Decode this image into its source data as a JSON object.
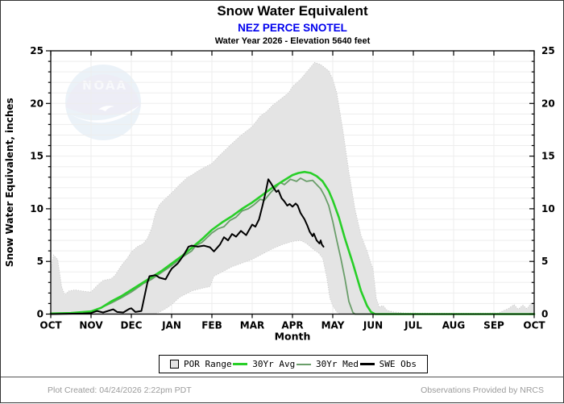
{
  "header": {
    "title": "Snow Water Equivalent",
    "station": "NEZ PERCE SNOTEL",
    "subtitle": "Water Year 2026 -  Elevation 5640 feet"
  },
  "watermark": {
    "text": "NOAA"
  },
  "legend": [
    {
      "label": "POR Range",
      "type": "box",
      "color": "#e4e4e4"
    },
    {
      "label": "30Yr Avg",
      "type": "line",
      "color": "#28cf28",
      "thickness": 3
    },
    {
      "label": "30Yr Med",
      "type": "line",
      "color": "#6a9e6a",
      "thickness": 2
    },
    {
      "label": "SWE Obs",
      "type": "line",
      "color": "#000000",
      "thickness": 3
    }
  ],
  "footer": {
    "left": "Plot Created: 04/24/2026 2:22pm PDT",
    "right": "Observations Provided by NRCS"
  },
  "chart_data": {
    "type": "line",
    "title": "Snow Water Equivalent - NEZ PERCE SNOTEL - Water Year 2026",
    "xlabel": "Month",
    "ylabel": "Snow Water Equivalent, inches",
    "x_unit": "months since Oct 1",
    "xlim": [
      0,
      12
    ],
    "ylim": [
      0,
      25
    ],
    "grid": true,
    "legend_position": "bottom",
    "x_tick_labels": [
      "OCT",
      "NOV",
      "DEC",
      "JAN",
      "FEB",
      "MAR",
      "APR",
      "MAY",
      "JUN",
      "JUL",
      "AUG",
      "SEP",
      "OCT"
    ],
    "y_ticks": [
      0,
      5,
      10,
      15,
      20,
      25
    ],
    "band": {
      "name": "POR Range",
      "fill": "#e4e4e4",
      "edge": "#c9c9c9",
      "upper": [
        [
          0,
          4.2
        ],
        [
          0.07,
          5.6
        ],
        [
          0.17,
          5.2
        ],
        [
          0.27,
          2.6
        ],
        [
          0.35,
          1.8
        ],
        [
          0.45,
          2.2
        ],
        [
          0.6,
          2.3
        ],
        [
          0.85,
          2.15
        ],
        [
          1.0,
          2.1
        ],
        [
          1.15,
          2.7
        ],
        [
          1.3,
          3.2
        ],
        [
          1.5,
          3.35
        ],
        [
          1.6,
          3.7
        ],
        [
          1.75,
          4.6
        ],
        [
          1.9,
          5.3
        ],
        [
          2.0,
          5.9
        ],
        [
          2.15,
          6.4
        ],
        [
          2.3,
          6.7
        ],
        [
          2.4,
          7.2
        ],
        [
          2.5,
          8.1
        ],
        [
          2.6,
          9.6
        ],
        [
          2.7,
          10.4
        ],
        [
          2.8,
          10.8
        ],
        [
          3.0,
          11.5
        ],
        [
          3.2,
          12.3
        ],
        [
          3.4,
          13.0
        ],
        [
          3.5,
          13.2
        ],
        [
          3.7,
          13.7
        ],
        [
          4.0,
          14.3
        ],
        [
          4.2,
          15.1
        ],
        [
          4.5,
          16.2
        ],
        [
          4.7,
          16.9
        ],
        [
          5.0,
          17.8
        ],
        [
          5.2,
          18.8
        ],
        [
          5.35,
          19.2
        ],
        [
          5.5,
          19.8
        ],
        [
          5.7,
          20.4
        ],
        [
          5.9,
          21.0
        ],
        [
          6.0,
          21.6
        ],
        [
          6.2,
          22.3
        ],
        [
          6.4,
          23.2
        ],
        [
          6.55,
          23.9
        ],
        [
          6.7,
          23.7
        ],
        [
          6.9,
          23.1
        ],
        [
          7.0,
          22.3
        ],
        [
          7.1,
          21.0
        ],
        [
          7.25,
          17.5
        ],
        [
          7.4,
          13.5
        ],
        [
          7.55,
          10.0
        ],
        [
          7.7,
          7.5
        ],
        [
          7.85,
          6.0
        ],
        [
          7.95,
          4.8
        ],
        [
          8.0,
          4.3
        ],
        [
          8.08,
          1.5
        ],
        [
          8.15,
          0.7
        ],
        [
          8.25,
          0.8
        ],
        [
          8.35,
          0.35
        ],
        [
          8.5,
          0.2
        ],
        [
          8.8,
          0.1
        ],
        [
          9.5,
          0.08
        ],
        [
          10.5,
          0.08
        ],
        [
          11.1,
          0.1
        ],
        [
          11.35,
          0.5
        ],
        [
          11.5,
          0.9
        ],
        [
          11.6,
          0.45
        ],
        [
          11.72,
          0.85
        ],
        [
          11.82,
          0.5
        ],
        [
          11.92,
          1.0
        ],
        [
          12,
          1.1
        ]
      ],
      "lower": [
        [
          0,
          0
        ],
        [
          2.55,
          0
        ],
        [
          2.7,
          0.2
        ],
        [
          2.85,
          0.5
        ],
        [
          3.0,
          0.9
        ],
        [
          3.2,
          1.6
        ],
        [
          3.5,
          2.2
        ],
        [
          3.75,
          2.45
        ],
        [
          3.95,
          2.6
        ],
        [
          4.05,
          3.6
        ],
        [
          4.3,
          4.1
        ],
        [
          4.5,
          4.5
        ],
        [
          4.75,
          4.85
        ],
        [
          5.0,
          5.2
        ],
        [
          5.25,
          5.7
        ],
        [
          5.5,
          6.2
        ],
        [
          5.75,
          6.6
        ],
        [
          6.0,
          6.9
        ],
        [
          6.2,
          7.0
        ],
        [
          6.35,
          6.7
        ],
        [
          6.5,
          6.2
        ],
        [
          6.65,
          5.8
        ],
        [
          6.75,
          5.3
        ],
        [
          6.85,
          3.5
        ],
        [
          6.93,
          1.5
        ],
        [
          7.0,
          0.8
        ],
        [
          7.1,
          0.2
        ],
        [
          7.2,
          0
        ],
        [
          12,
          0
        ]
      ]
    },
    "series": [
      {
        "name": "30Yr Avg",
        "color": "#28cf28",
        "width": 2.6,
        "points": [
          [
            0,
            0.05
          ],
          [
            0.5,
            0.1
          ],
          [
            1.0,
            0.25
          ],
          [
            1.25,
            0.6
          ],
          [
            1.5,
            1.2
          ],
          [
            1.75,
            1.7
          ],
          [
            2.0,
            2.3
          ],
          [
            2.25,
            2.9
          ],
          [
            2.5,
            3.5
          ],
          [
            2.75,
            4.1
          ],
          [
            3.0,
            4.8
          ],
          [
            3.25,
            5.5
          ],
          [
            3.5,
            6.3
          ],
          [
            3.75,
            7.1
          ],
          [
            4.0,
            8.0
          ],
          [
            4.25,
            8.7
          ],
          [
            4.5,
            9.3
          ],
          [
            4.75,
            10.0
          ],
          [
            5.0,
            10.6
          ],
          [
            5.25,
            11.3
          ],
          [
            5.5,
            12.0
          ],
          [
            5.75,
            12.6
          ],
          [
            6.0,
            13.2
          ],
          [
            6.15,
            13.4
          ],
          [
            6.3,
            13.5
          ],
          [
            6.45,
            13.4
          ],
          [
            6.6,
            13.1
          ],
          [
            6.75,
            12.6
          ],
          [
            6.9,
            11.7
          ],
          [
            7.0,
            10.8
          ],
          [
            7.15,
            9.2
          ],
          [
            7.3,
            7.2
          ],
          [
            7.5,
            4.8
          ],
          [
            7.7,
            2.2
          ],
          [
            7.85,
            0.8
          ],
          [
            7.95,
            0.2
          ],
          [
            8.05,
            0
          ],
          [
            12,
            0
          ]
        ]
      },
      {
        "name": "30Yr Med",
        "color": "#6a9e6a",
        "width": 1.8,
        "points": [
          [
            0,
            0
          ],
          [
            0.5,
            0.05
          ],
          [
            1.0,
            0.2
          ],
          [
            1.3,
            0.7
          ],
          [
            1.5,
            1.05
          ],
          [
            1.75,
            1.55
          ],
          [
            2.0,
            2.1
          ],
          [
            2.3,
            2.9
          ],
          [
            2.5,
            3.3
          ],
          [
            2.75,
            3.95
          ],
          [
            3.0,
            4.6
          ],
          [
            3.3,
            5.5
          ],
          [
            3.5,
            6.0
          ],
          [
            3.6,
            6.5
          ],
          [
            3.75,
            6.8
          ],
          [
            4.0,
            7.7
          ],
          [
            4.15,
            8.1
          ],
          [
            4.3,
            8.3
          ],
          [
            4.45,
            8.9
          ],
          [
            4.6,
            9.2
          ],
          [
            4.75,
            9.8
          ],
          [
            4.9,
            10.0
          ],
          [
            5.05,
            10.4
          ],
          [
            5.2,
            10.9
          ],
          [
            5.3,
            10.8
          ],
          [
            5.45,
            11.5
          ],
          [
            5.6,
            12.1
          ],
          [
            5.7,
            12.5
          ],
          [
            5.8,
            12.3
          ],
          [
            5.95,
            12.8
          ],
          [
            6.1,
            12.6
          ],
          [
            6.2,
            12.9
          ],
          [
            6.35,
            12.6
          ],
          [
            6.5,
            12.7
          ],
          [
            6.6,
            12.3
          ],
          [
            6.7,
            11.9
          ],
          [
            6.8,
            11.2
          ],
          [
            6.9,
            10.3
          ],
          [
            7.0,
            8.8
          ],
          [
            7.1,
            7.0
          ],
          [
            7.2,
            5.3
          ],
          [
            7.3,
            3.4
          ],
          [
            7.4,
            1.2
          ],
          [
            7.5,
            0.15
          ],
          [
            7.55,
            0
          ],
          [
            12,
            0
          ]
        ]
      },
      {
        "name": "SWE Obs",
        "color": "#000000",
        "width": 2,
        "points": [
          [
            0,
            0
          ],
          [
            0.8,
            0.05
          ],
          [
            1.0,
            0.1
          ],
          [
            1.15,
            0.3
          ],
          [
            1.3,
            0.15
          ],
          [
            1.55,
            0.45
          ],
          [
            1.65,
            0.2
          ],
          [
            1.8,
            0.15
          ],
          [
            1.95,
            0.5
          ],
          [
            2.0,
            0.55
          ],
          [
            2.1,
            0.2
          ],
          [
            2.25,
            0.3
          ],
          [
            2.3,
            1.2
          ],
          [
            2.4,
            3.0
          ],
          [
            2.45,
            3.6
          ],
          [
            2.6,
            3.7
          ],
          [
            2.7,
            3.45
          ],
          [
            2.85,
            3.3
          ],
          [
            2.95,
            4.0
          ],
          [
            3.0,
            4.3
          ],
          [
            3.15,
            4.8
          ],
          [
            3.3,
            5.6
          ],
          [
            3.42,
            6.4
          ],
          [
            3.5,
            6.5
          ],
          [
            3.65,
            6.4
          ],
          [
            3.8,
            6.5
          ],
          [
            3.95,
            6.35
          ],
          [
            4.05,
            5.95
          ],
          [
            4.2,
            6.6
          ],
          [
            4.3,
            7.3
          ],
          [
            4.4,
            7.0
          ],
          [
            4.5,
            7.6
          ],
          [
            4.6,
            7.35
          ],
          [
            4.72,
            7.9
          ],
          [
            4.85,
            7.5
          ],
          [
            5.0,
            8.5
          ],
          [
            5.08,
            8.3
          ],
          [
            5.17,
            9.0
          ],
          [
            5.25,
            10.2
          ],
          [
            5.33,
            11.5
          ],
          [
            5.4,
            12.8
          ],
          [
            5.47,
            12.4
          ],
          [
            5.53,
            12.0
          ],
          [
            5.6,
            11.6
          ],
          [
            5.65,
            11.75
          ],
          [
            5.73,
            11.0
          ],
          [
            5.8,
            10.7
          ],
          [
            5.87,
            10.3
          ],
          [
            5.93,
            10.45
          ],
          [
            6.0,
            10.2
          ],
          [
            6.08,
            10.5
          ],
          [
            6.13,
            10.3
          ],
          [
            6.2,
            9.6
          ],
          [
            6.3,
            9.0
          ],
          [
            6.37,
            8.4
          ],
          [
            6.43,
            7.8
          ],
          [
            6.5,
            7.4
          ],
          [
            6.53,
            7.65
          ],
          [
            6.6,
            7.0
          ],
          [
            6.67,
            6.7
          ],
          [
            6.7,
            7.0
          ],
          [
            6.73,
            6.6
          ],
          [
            6.77,
            6.4
          ]
        ]
      }
    ]
  }
}
